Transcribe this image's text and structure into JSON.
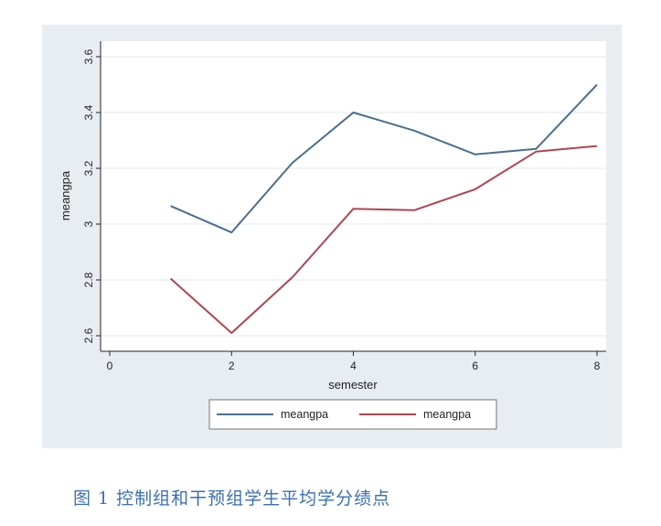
{
  "caption": "图 1 控制组和干预组学生平均学分绩点",
  "chart_data": {
    "type": "line",
    "x": [
      1,
      2,
      3,
      4,
      5,
      6,
      7,
      8
    ],
    "series": [
      {
        "name": "meangpa",
        "color": "#4a6e8f",
        "values": [
          3.065,
          2.97,
          3.22,
          3.4,
          3.335,
          3.25,
          3.27,
          3.5
        ]
      },
      {
        "name": "meangpa",
        "color": "#b0454d",
        "values": [
          2.805,
          2.61,
          2.81,
          3.055,
          3.05,
          3.125,
          3.26,
          3.28
        ]
      }
    ],
    "xlabel": "semester",
    "ylabel": "meangpa",
    "xlim": [
      0,
      8
    ],
    "ylim": [
      2.6,
      3.6
    ],
    "xticks": [
      "0",
      "2",
      "4",
      "6",
      "8"
    ],
    "yticks": [
      "2.6",
      "2.8",
      "3",
      "3.2",
      "3.4",
      "3.6"
    ],
    "grid": true,
    "legend_placement": "bottom-center"
  }
}
